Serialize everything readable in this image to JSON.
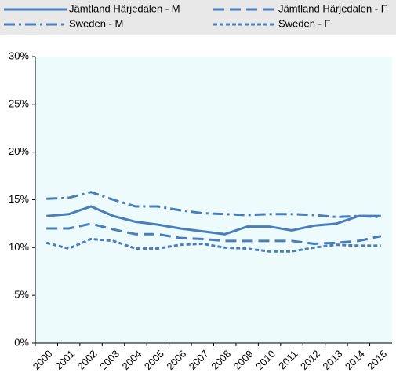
{
  "chart_data": {
    "type": "line",
    "categories": [
      "2000",
      "2001",
      "2002",
      "2003",
      "2004",
      "2005",
      "2006",
      "2007",
      "2008",
      "2009",
      "2010",
      "2011",
      "2012",
      "2013",
      "2014",
      "2015"
    ],
    "series": [
      {
        "name": "Jämtland Härjedalen - M",
        "color": "#4a7ebb",
        "style": "solid",
        "values": [
          13.3,
          13.5,
          14.3,
          13.3,
          12.7,
          12.4,
          12.0,
          11.7,
          11.4,
          12.2,
          12.2,
          11.8,
          12.3,
          12.5,
          13.3,
          13.3
        ]
      },
      {
        "name": "Jämtland Härjedalen - F",
        "color": "#4a7ebb",
        "style": "dash",
        "values": [
          12.0,
          12.0,
          12.5,
          11.9,
          11.4,
          11.4,
          11.0,
          10.9,
          10.7,
          10.7,
          10.7,
          10.7,
          10.4,
          10.5,
          10.7,
          11.2
        ]
      },
      {
        "name": "Sweden - M",
        "color": "#4a7ebb",
        "style": "dashdot",
        "values": [
          15.1,
          15.2,
          15.8,
          15.0,
          14.3,
          14.3,
          13.9,
          13.6,
          13.5,
          13.4,
          13.5,
          13.5,
          13.4,
          13.2,
          13.3,
          13.2
        ]
      },
      {
        "name": "Sweden - F",
        "color": "#4a7ebb",
        "style": "dot",
        "values": [
          10.5,
          9.9,
          10.9,
          10.7,
          9.9,
          9.9,
          10.3,
          10.4,
          10.0,
          9.9,
          9.6,
          9.6,
          10.0,
          10.3,
          10.2,
          10.2
        ]
      }
    ],
    "ylim": [
      0,
      30
    ],
    "yticks": [
      {
        "value": 0,
        "label": "0%"
      },
      {
        "value": 5,
        "label": "5%"
      },
      {
        "value": 10,
        "label": "10%"
      },
      {
        "value": 15,
        "label": "15%"
      },
      {
        "value": 20,
        "label": "20%"
      },
      {
        "value": 25,
        "label": "25%"
      },
      {
        "value": 30,
        "label": "30%"
      }
    ],
    "plot_background": "#eefbfd",
    "legend_background": "#e8e8e8"
  }
}
